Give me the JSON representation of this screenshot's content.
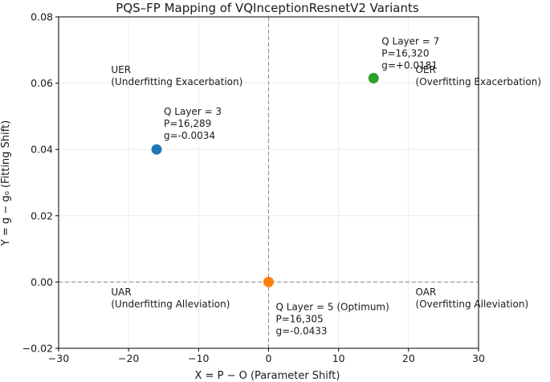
{
  "chart_data": {
    "type": "scatter",
    "title": "PQS–FP Mapping of VQInceptionResnetV2 Variants",
    "xlabel": "X = P − O (Parameter Shift)",
    "ylabel": "Y = g − g₀ (Fitting Shift)",
    "xlim": [
      -30,
      30
    ],
    "ylim": [
      -0.02,
      0.08
    ],
    "x_ticks": [
      -30,
      -20,
      -10,
      0,
      10,
      20,
      30
    ],
    "x_tick_labels": [
      "−30",
      "−20",
      "−10",
      "0",
      "10",
      "20",
      "30"
    ],
    "y_ticks": [
      -0.02,
      0.0,
      0.02,
      0.04,
      0.06,
      0.08
    ],
    "y_tick_labels": [
      "−0.02",
      "0.00",
      "0.02",
      "0.04",
      "0.06",
      "0.08"
    ],
    "grid": true,
    "reference_lines": {
      "x": 0,
      "y": 0
    },
    "points": [
      {
        "name": "Q Layer = 3",
        "x": -16,
        "y": 0.04,
        "color": "#1f77b4",
        "label_lines": [
          "Q Layer = 3",
          "P=16,289",
          "g=-0.0034"
        ]
      },
      {
        "name": "Q Layer = 5 (Optimum)",
        "x": 0,
        "y": 0.0,
        "color": "#ff7f0e",
        "label_lines": [
          "Q Layer = 5 (Optimum)",
          "P=16,305",
          "g=-0.0433"
        ]
      },
      {
        "name": "Q Layer = 7",
        "x": 15,
        "y": 0.0615,
        "color": "#2ca02c",
        "label_lines": [
          "Q Layer = 7",
          "P=16,320",
          "g=+0.0181"
        ]
      }
    ],
    "quadrants": [
      {
        "lines": [
          "UER",
          "(Underfitting Exacerbation)"
        ],
        "x": -22.5,
        "y": 0.063
      },
      {
        "lines": [
          "OER",
          "(Overfitting Exacerbation)"
        ],
        "x": 21,
        "y": 0.063
      },
      {
        "lines": [
          "UAR",
          "(Underfitting Alleviation)"
        ],
        "x": -22.5,
        "y": -0.004
      },
      {
        "lines": [
          "OAR",
          "(Overfitting Alleviation)"
        ],
        "x": 21,
        "y": -0.004
      }
    ]
  }
}
